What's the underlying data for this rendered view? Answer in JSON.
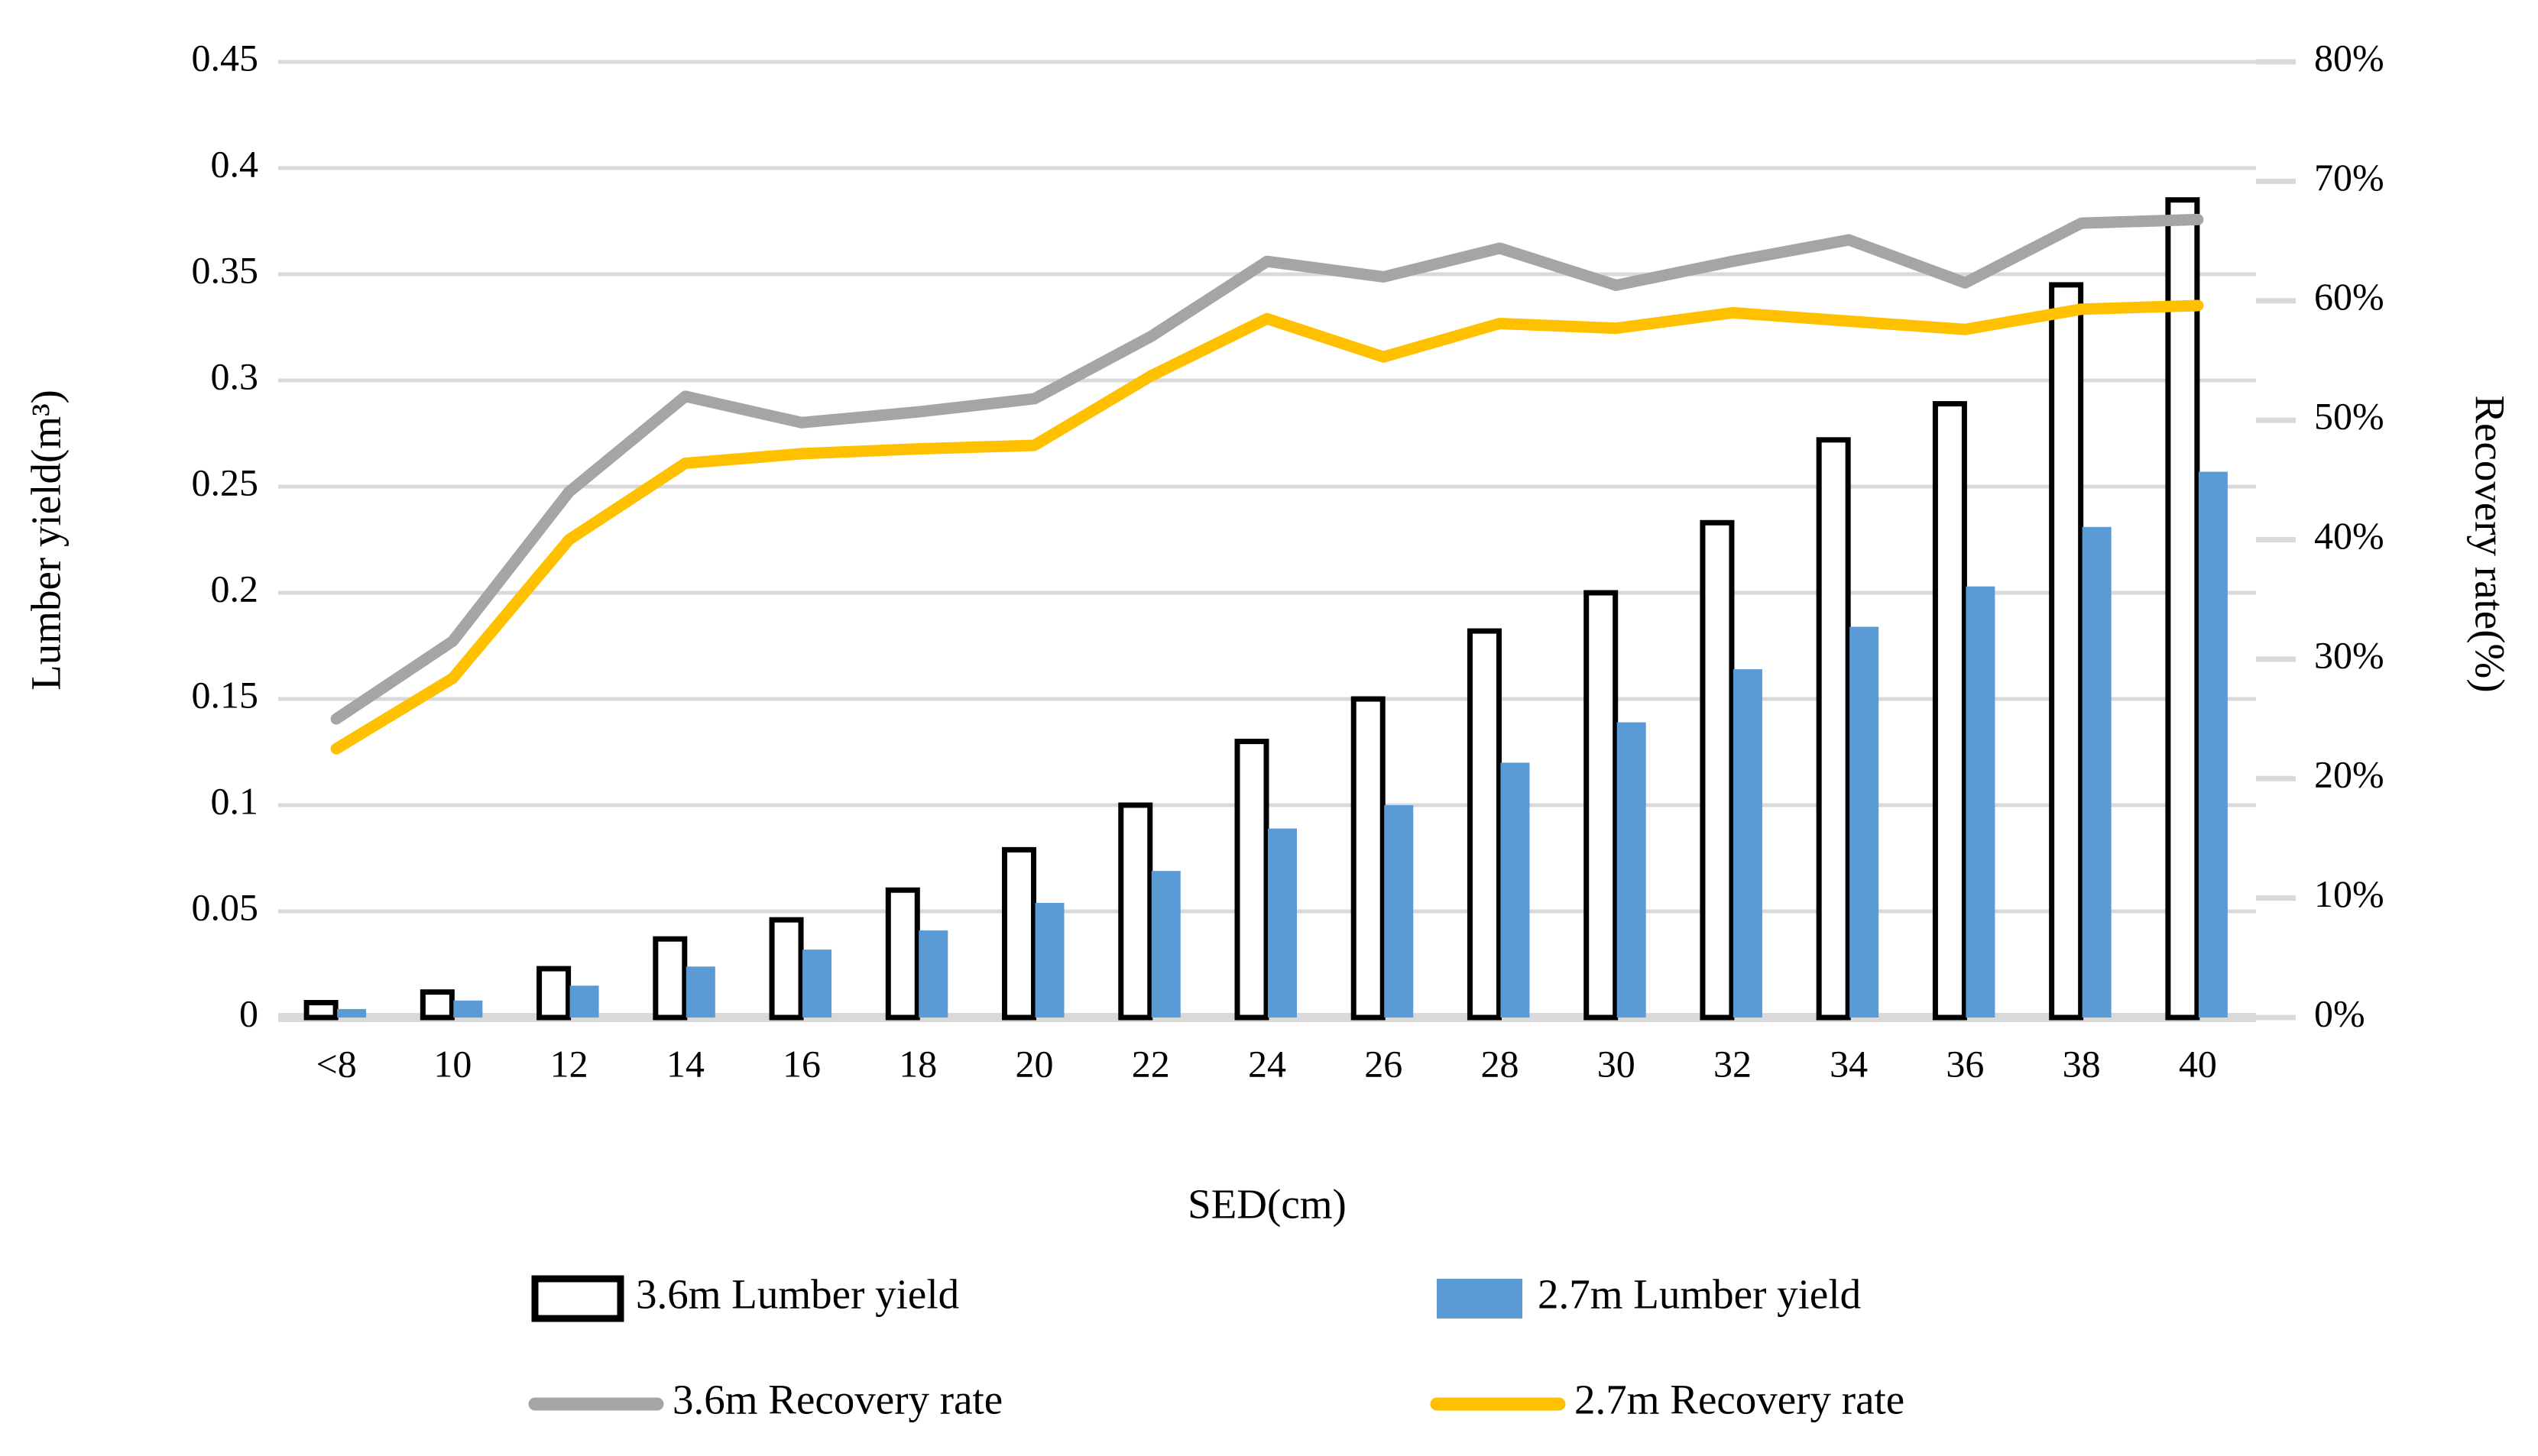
{
  "chart_data": {
    "type": "combo-bar-line",
    "title": "",
    "categories": [
      "<8",
      "10",
      "12",
      "14",
      "16",
      "18",
      "20",
      "22",
      "24",
      "26",
      "28",
      "30",
      "32",
      "34",
      "36",
      "38",
      "40"
    ],
    "xlabel": "SED(cm)",
    "ylabel_left": "Lumber yield(m³)",
    "ylabel_right": "Recovery rate(%)",
    "y_left_axis": {
      "min": 0,
      "max": 0.45,
      "step": 0.05,
      "tick_labels": [
        "0",
        "0.05",
        "0.1",
        "0.15",
        "0.2",
        "0.25",
        "0.3",
        "0.35",
        "0.4",
        "0.45"
      ]
    },
    "y_right_axis": {
      "min": 0,
      "max": 80,
      "step": 10,
      "tick_labels": [
        "0%",
        "10%",
        "20%",
        "30%",
        "40%",
        "50%",
        "60%",
        "70%",
        "80%"
      ]
    },
    "grid": "horizontal",
    "legend_position": "bottom",
    "series": [
      {
        "name": "3.6m Lumber yield",
        "type": "bar",
        "axis": "left",
        "fill": "#FFFFFF",
        "stroke": "#000000",
        "values": [
          0.007,
          0.012,
          0.023,
          0.037,
          0.046,
          0.06,
          0.079,
          0.1,
          0.13,
          0.15,
          0.182,
          0.2,
          0.233,
          0.272,
          0.289,
          0.345,
          0.385
        ]
      },
      {
        "name": "2.7m Lumber yield",
        "type": "bar",
        "axis": "left",
        "fill": "#5B9BD5",
        "stroke": "none",
        "values": [
          0.004,
          0.008,
          0.015,
          0.024,
          0.032,
          0.041,
          0.054,
          0.069,
          0.089,
          0.1,
          0.12,
          0.139,
          0.164,
          0.184,
          0.203,
          0.231,
          0.257
        ]
      },
      {
        "name": "3.6m Recovery rate",
        "type": "line",
        "axis": "right",
        "color": "#A5A5A5",
        "values": [
          25.0,
          31.5,
          44.0,
          52.0,
          49.8,
          50.7,
          51.8,
          57.0,
          63.3,
          62.0,
          64.4,
          61.3,
          63.3,
          65.1,
          61.5,
          66.5,
          66.8
        ]
      },
      {
        "name": "2.7m Recovery rate",
        "type": "line",
        "axis": "right",
        "color": "#FFC000",
        "values": [
          22.5,
          28.4,
          40.0,
          46.4,
          47.2,
          47.6,
          47.9,
          53.7,
          58.5,
          55.3,
          58.1,
          57.7,
          59.0,
          58.3,
          57.6,
          59.3,
          59.6
        ]
      }
    ],
    "colors": {
      "bar_36m_fill": "#FFFFFF",
      "bar_36m_border": "#000000",
      "bar_27m_fill": "#5B9BD5",
      "line_36m": "#A5A5A5",
      "line_27m": "#FFC000",
      "gridline": "#D9D9D9",
      "axis_baseline": "#D9D9D9",
      "text": "#000000",
      "background": "#FFFFFF"
    }
  }
}
